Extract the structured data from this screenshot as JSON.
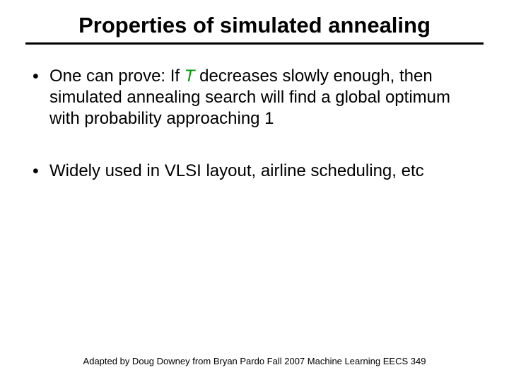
{
  "title": "Properties of simulated annealing",
  "bullets": [
    {
      "pre": "One can prove: If ",
      "var": "T",
      "post": " decreases slowly enough, then simulated annealing search will find a global optimum with probability approaching 1"
    },
    {
      "pre": "Widely used in VLSI layout, airline scheduling, etc",
      "var": "",
      "post": ""
    }
  ],
  "footer": "Adapted by Doug Downey from Bryan Pardo  Fall 2007 Machine Learning EECS 349",
  "styling": {
    "slide_width": 720,
    "slide_height": 540,
    "background_color": "#ffffff",
    "title_font": "Arial",
    "title_fontsize": 31,
    "title_fontweight": "bold",
    "title_color": "#000000",
    "title_underline_color": "#000000",
    "title_underline_thickness": 3,
    "body_font": "Verdana",
    "body_fontsize": 24,
    "body_color": "#000000",
    "variable_color": "#009900",
    "variable_style": "italic",
    "bullet_marker": "•",
    "footer_font": "Arial",
    "footer_fontsize": 13,
    "footer_color": "#000000"
  }
}
